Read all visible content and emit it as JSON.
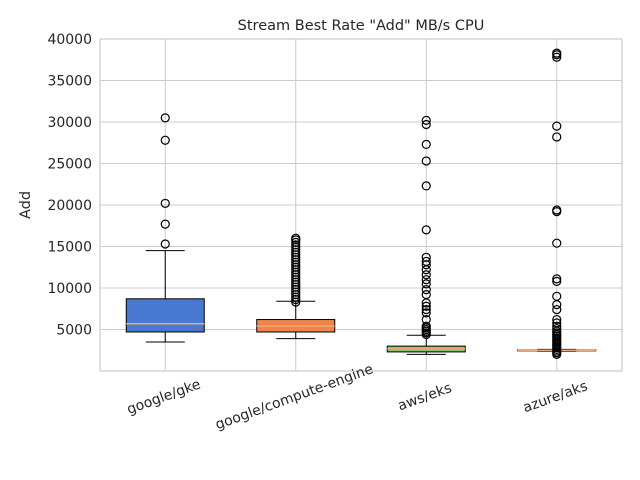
{
  "chart_data": {
    "type": "box",
    "title": "Stream Best Rate \"Add\" MB/s CPU",
    "xlabel": "",
    "ylabel": "Add",
    "ylim": [
      0,
      40000
    ],
    "yticks": [
      5000,
      10000,
      15000,
      20000,
      25000,
      30000,
      35000,
      40000
    ],
    "grid": true,
    "categories": [
      "google/gke",
      "google/compute-engine",
      "aws/eks",
      "azure/aks"
    ],
    "boxes": [
      {
        "name": "google/gke",
        "color": "#4878cf",
        "whisker_low": 3500,
        "q1": 4700,
        "median": 5700,
        "q3": 8700,
        "whisker_high": 14500,
        "outliers": [
          15300,
          17700,
          20200,
          27800,
          30500
        ]
      },
      {
        "name": "google/compute-engine",
        "color": "#ee854a",
        "whisker_low": 3900,
        "q1": 4700,
        "median": 5400,
        "q3": 6200,
        "whisker_high": 8400,
        "outliers": [
          8300,
          8600,
          8900,
          9200,
          9500,
          9800,
          10100,
          10400,
          10700,
          11000,
          11300,
          11600,
          11900,
          12200,
          12500,
          12800,
          13100,
          13400,
          13700,
          14000,
          14300,
          14600,
          14900,
          15200,
          15500,
          15800,
          16000
        ]
      },
      {
        "name": "aws/eks",
        "color": "#8ec070",
        "whisker_low": 2000,
        "q1": 2300,
        "median": 2700,
        "q3": 3000,
        "whisker_high": 4300,
        "outliers": [
          4400,
          4600,
          4800,
          5000,
          5200,
          5400,
          6200,
          7000,
          7400,
          7800,
          8200,
          9200,
          9800,
          10500,
          11000,
          11600,
          12200,
          12800,
          13200,
          13700,
          17000,
          22300,
          25300,
          27300,
          29700,
          30200
        ]
      },
      {
        "name": "azure/aks",
        "color": "#e8a580",
        "whisker_low": 2400,
        "q1": 2450,
        "median": 2500,
        "q3": 2550,
        "whisker_high": 2600,
        "outliers": [
          2000,
          2200,
          2400,
          2600,
          2800,
          3000,
          3200,
          3400,
          3600,
          3800,
          4000,
          4200,
          4400,
          4600,
          4800,
          5100,
          5400,
          5800,
          6200,
          7400,
          8000,
          9000,
          10800,
          11100,
          15400,
          19200,
          19400,
          28200,
          29500,
          37800,
          38100,
          38300
        ]
      }
    ]
  }
}
